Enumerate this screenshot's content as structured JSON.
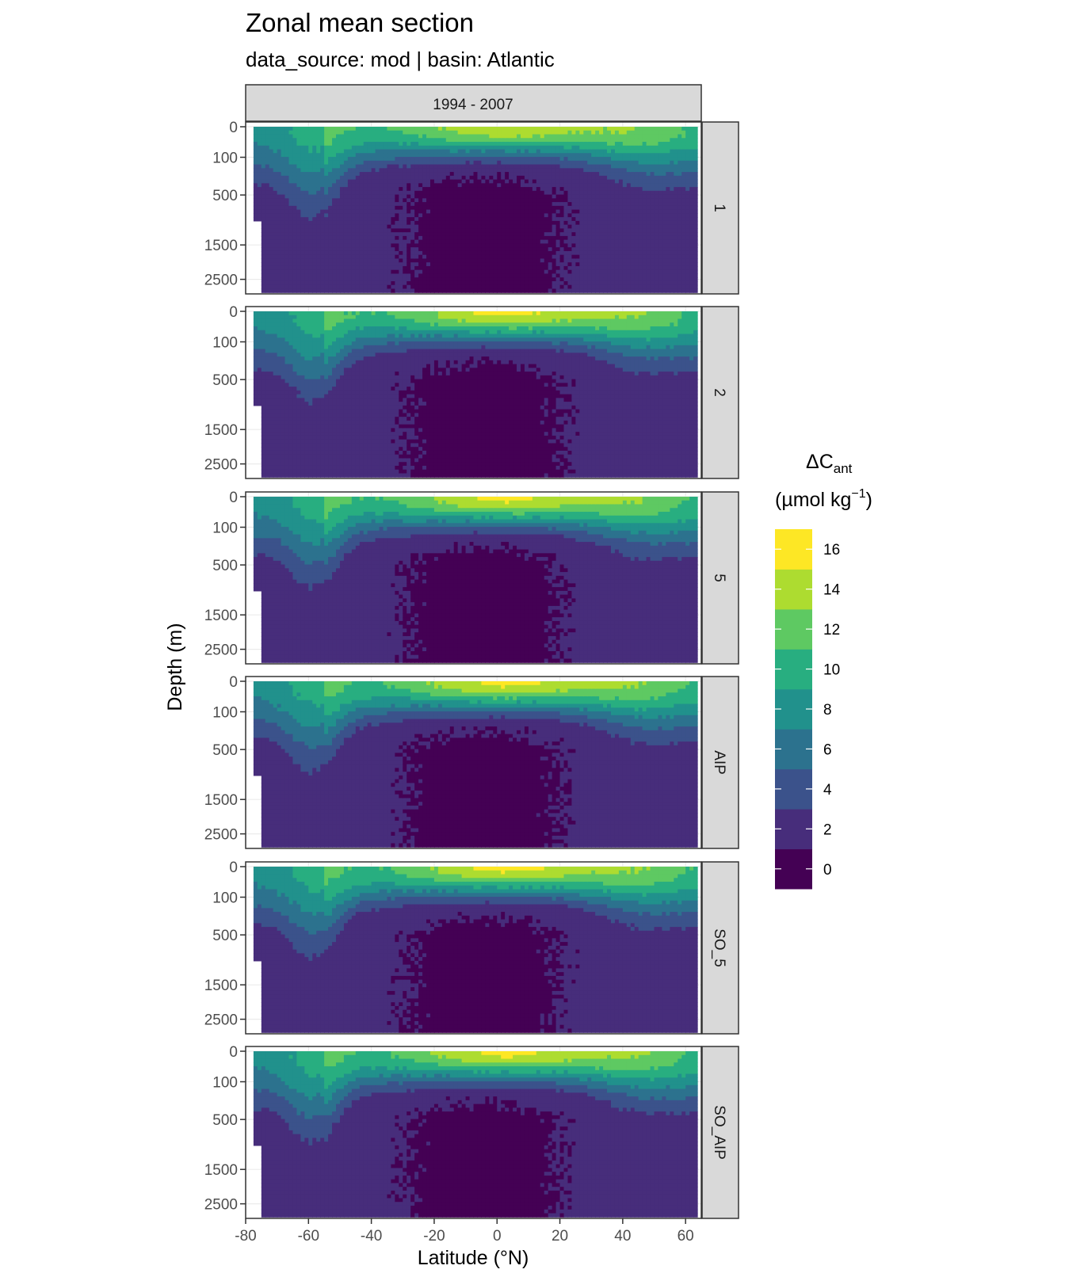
{
  "chart_data": {
    "type": "heatmap",
    "subtype": "filled-contour-facets",
    "title": "Zonal mean section",
    "subtitle": "data_source:  mod | basin: Atlantic",
    "column_strip": "1994 - 2007",
    "facets": [
      "1",
      "2",
      "5",
      "AIP",
      "SO_5",
      "SO_AIP"
    ],
    "xlabel": "Latitude (°N)",
    "ylabel": "Depth (m)",
    "x_ticks": [
      -80,
      -60,
      -40,
      -20,
      0,
      20,
      40,
      60
    ],
    "x_tick_labels": [
      "-80",
      "-60",
      "-40",
      "-20",
      "0",
      "20",
      "40",
      "60"
    ],
    "xlim": [
      -80,
      65
    ],
    "y_ticks": [
      0,
      100,
      500,
      1500,
      2500
    ],
    "y_tick_labels": [
      "0",
      "100",
      "500",
      "1500",
      "2500"
    ],
    "y_scale": "sqrt, reversed",
    "ylim": [
      3000,
      0
    ],
    "grid": true,
    "legend": {
      "title_main": "ΔC",
      "title_sub": "ant",
      "title_unit_pre": "(µmol kg",
      "title_unit_sup": "−1",
      "title_unit_post": ")",
      "placement": "right",
      "breaks": [
        0,
        2,
        4,
        6,
        8,
        10,
        12,
        14,
        16
      ],
      "labels": [
        "0",
        "2",
        "4",
        "6",
        "8",
        "10",
        "12",
        "14",
        "16"
      ],
      "colors": [
        "#440154",
        "#472d7b",
        "#3b528b",
        "#2c728e",
        "#21918c",
        "#28ae80",
        "#5ec962",
        "#addc30",
        "#fde725"
      ]
    },
    "panels": [
      {
        "facet": "1",
        "surface_max": 14,
        "upper_500m_core": 4,
        "deep_min": 0
      },
      {
        "facet": "2",
        "surface_max": 16,
        "upper_500m_core": 4,
        "deep_min": 0
      },
      {
        "facet": "5",
        "surface_max": 16,
        "upper_500m_core": 6,
        "deep_min": 0
      },
      {
        "facet": "AIP",
        "surface_max": 16,
        "upper_500m_core": 4,
        "deep_min": 0
      },
      {
        "facet": "SO_5",
        "surface_max": 16,
        "upper_500m_core": 4,
        "deep_min": 0
      },
      {
        "facet": "SO_AIP",
        "surface_max": 16,
        "upper_500m_core": 4,
        "deep_min": 0
      }
    ]
  }
}
